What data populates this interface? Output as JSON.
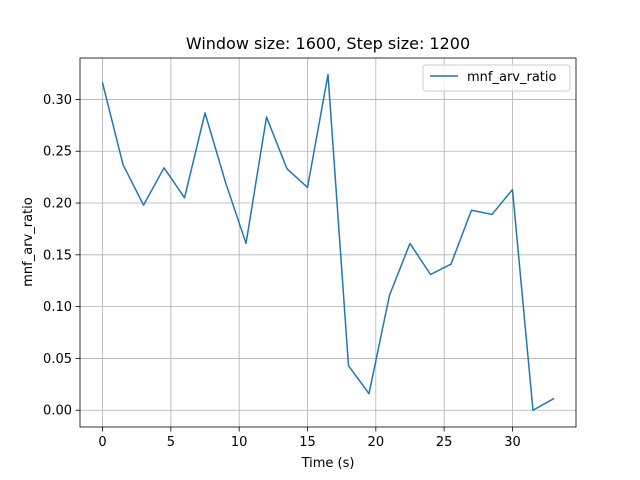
{
  "chart_data": {
    "type": "line",
    "title": "Window size: 1600, Step size: 1200",
    "xlabel": "Time (s)",
    "ylabel": "mnf_arv_ratio",
    "xlim": [
      -1.65,
      34.65
    ],
    "ylim": [
      -0.0162,
      0.34
    ],
    "xticks": [
      0,
      5,
      10,
      15,
      20,
      25,
      30
    ],
    "xtick_labels": [
      "0",
      "5",
      "10",
      "15",
      "20",
      "25",
      "30"
    ],
    "yticks": [
      0.0,
      0.05,
      0.1,
      0.15,
      0.2,
      0.25,
      0.3
    ],
    "ytick_labels": [
      "0.00",
      "0.05",
      "0.10",
      "0.15",
      "0.20",
      "0.25",
      "0.30"
    ],
    "grid": true,
    "legend_position": "top-right",
    "series": [
      {
        "name": "mnf_arv_ratio",
        "color": "#1f77b4",
        "x": [
          0,
          1.5,
          3,
          4.5,
          6,
          7.5,
          9,
          10.5,
          12,
          13.5,
          15,
          16.5,
          18,
          19.5,
          21,
          22.5,
          24,
          25.5,
          27,
          28.5,
          30,
          31.5,
          33
        ],
        "y": [
          0.316,
          0.237,
          0.198,
          0.234,
          0.205,
          0.287,
          0.22,
          0.161,
          0.283,
          0.233,
          0.215,
          0.324,
          0.043,
          0.016,
          0.111,
          0.161,
          0.131,
          0.141,
          0.193,
          0.189,
          0.213,
          0.0,
          0.011
        ]
      }
    ]
  }
}
